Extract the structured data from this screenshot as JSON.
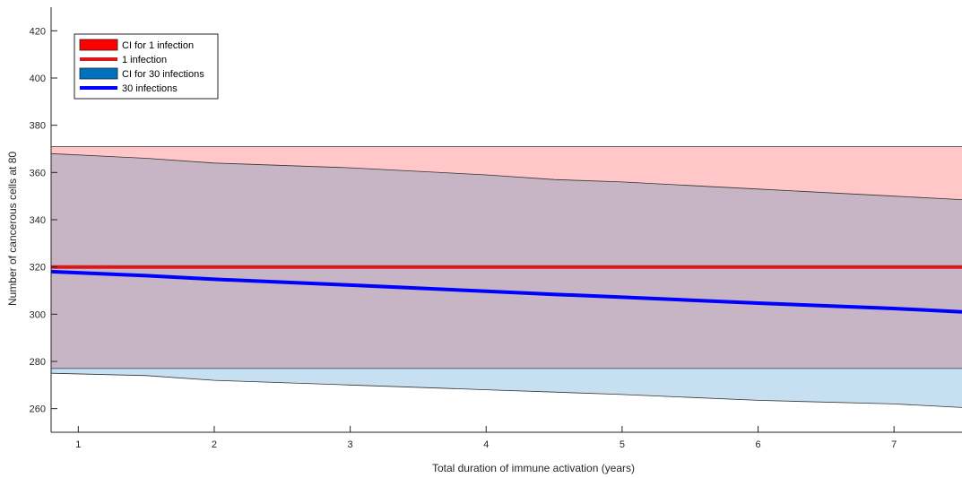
{
  "chart_data": {
    "type": "area",
    "xlabel": "Total duration of immune activation (years)",
    "ylabel": "Number of cancerous cells at 80",
    "xlim": [
      0.8,
      7.5
    ],
    "ylim": [
      250,
      430
    ],
    "xticks": [
      1,
      2,
      3,
      4,
      5,
      6,
      7
    ],
    "yticks": [
      260,
      280,
      300,
      320,
      340,
      360,
      380,
      400,
      420
    ],
    "grid": false,
    "legend_position": "top-left",
    "x": [
      0.8,
      1.5,
      2,
      3,
      4,
      4.5,
      5,
      6,
      7,
      7.5
    ],
    "series": [
      {
        "name": "CI for 1 infection",
        "kind": "band",
        "color": "#ff0000",
        "upper": [
          371,
          371,
          371,
          371,
          371,
          371,
          371,
          371,
          371,
          371
        ],
        "lower": [
          277,
          277,
          277,
          277,
          277,
          277,
          277,
          277,
          277,
          277
        ]
      },
      {
        "name": "1 infection",
        "kind": "line",
        "color": "#d7191c",
        "values": [
          320,
          320,
          320,
          320,
          320,
          320,
          320,
          320,
          320,
          320
        ]
      },
      {
        "name": "CI for 30 infections",
        "kind": "band",
        "color": "#0072bd",
        "upper": [
          368,
          366,
          364,
          362,
          359,
          357,
          356,
          353,
          350,
          348.5
        ],
        "lower": [
          275,
          274,
          272,
          270,
          268,
          267,
          266,
          263.5,
          262,
          260.5
        ]
      },
      {
        "name": "30 infections",
        "kind": "line",
        "color": "#0000ff",
        "values": [
          318,
          316.3,
          314.8,
          312.3,
          309.7,
          308.4,
          307.2,
          304.7,
          302.4,
          301
        ]
      }
    ]
  }
}
